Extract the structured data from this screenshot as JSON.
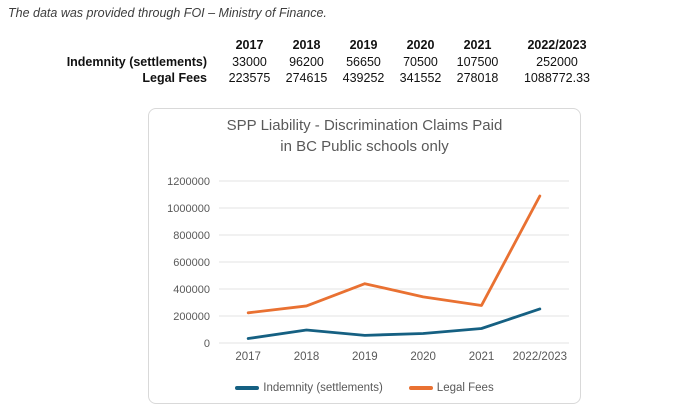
{
  "note": "The data was provided through FOI – Ministry of Finance.",
  "table": {
    "columns": [
      "",
      "2017",
      "2018",
      "2019",
      "2020",
      "2021",
      "2022/2023"
    ],
    "rows": [
      {
        "label": "Indemnity (settlements)",
        "values": [
          "33000",
          "96200",
          "56650",
          "70500",
          "107500",
          "252000"
        ]
      },
      {
        "label": "Legal Fees",
        "values": [
          "223575",
          "274615",
          "439252",
          "341552",
          "278018",
          "1088772.33"
        ]
      }
    ]
  },
  "chart_data": {
    "type": "line",
    "title": "SPP Liability - Discrimination Claims Paid in BC Public schools only",
    "title_lines": [
      "SPP Liability - Discrimination Claims Paid",
      "in BC Public schools only"
    ],
    "categories": [
      "2017",
      "2018",
      "2019",
      "2020",
      "2021",
      "2022/2023"
    ],
    "series": [
      {
        "name": "Indemnity (settlements)",
        "color": "#156082",
        "values": [
          33000,
          96200,
          56650,
          70500,
          107500,
          252000
        ]
      },
      {
        "name": "Legal Fees",
        "color": "#E97132",
        "values": [
          223575,
          274615,
          439252,
          341552,
          278018,
          1088772.33
        ]
      }
    ],
    "ylim": [
      0,
      1200000
    ],
    "yticks": [
      0,
      200000,
      400000,
      600000,
      800000,
      1000000,
      1200000
    ],
    "xlabel": "",
    "ylabel": "",
    "grid": true,
    "legend_position": "bottom"
  }
}
